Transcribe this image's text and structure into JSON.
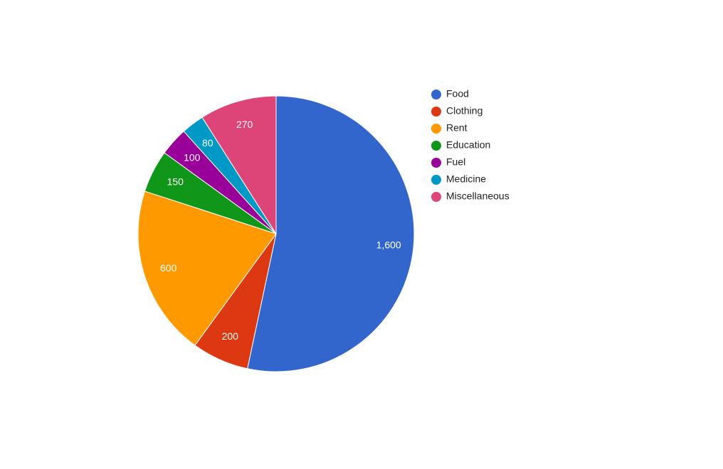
{
  "chart_data": {
    "type": "pie",
    "categories": [
      "Food",
      "Clothing",
      "Rent",
      "Education",
      "Fuel",
      "Medicine",
      "Miscellaneous"
    ],
    "values": [
      1600,
      200,
      600,
      150,
      100,
      80,
      270
    ],
    "value_labels": [
      "1,600",
      "200",
      "600",
      "150",
      "100",
      "80",
      "270"
    ],
    "colors": [
      "#3366cc",
      "#dc3912",
      "#ff9900",
      "#109618",
      "#990099",
      "#0099c6",
      "#dd4477"
    ],
    "legend": "right"
  }
}
